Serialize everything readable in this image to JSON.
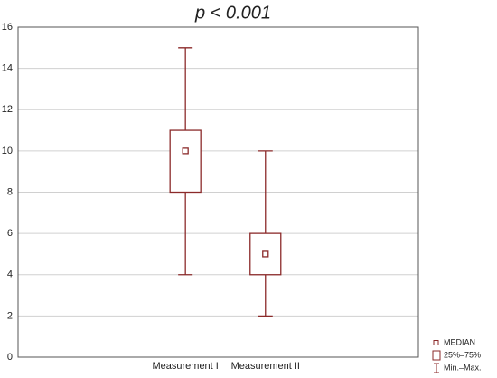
{
  "chart_data": {
    "type": "box",
    "title": "p < 0.001",
    "categories": [
      "Measurement I",
      "Measurement II"
    ],
    "boxes": [
      {
        "min": 4,
        "q1": 8,
        "median": 10,
        "q3": 11,
        "max": 15
      },
      {
        "min": 2,
        "q1": 4,
        "median": 5,
        "q3": 6,
        "max": 10
      }
    ],
    "color": "#8b2a2a",
    "ylim": [
      0,
      16
    ],
    "yticks": [
      0,
      2,
      4,
      6,
      8,
      10,
      12,
      14,
      16
    ],
    "grid": true,
    "legend": [
      "MEDIAN",
      "25%–75%",
      "Min.–Max."
    ],
    "legend_position": "bottom-right"
  }
}
